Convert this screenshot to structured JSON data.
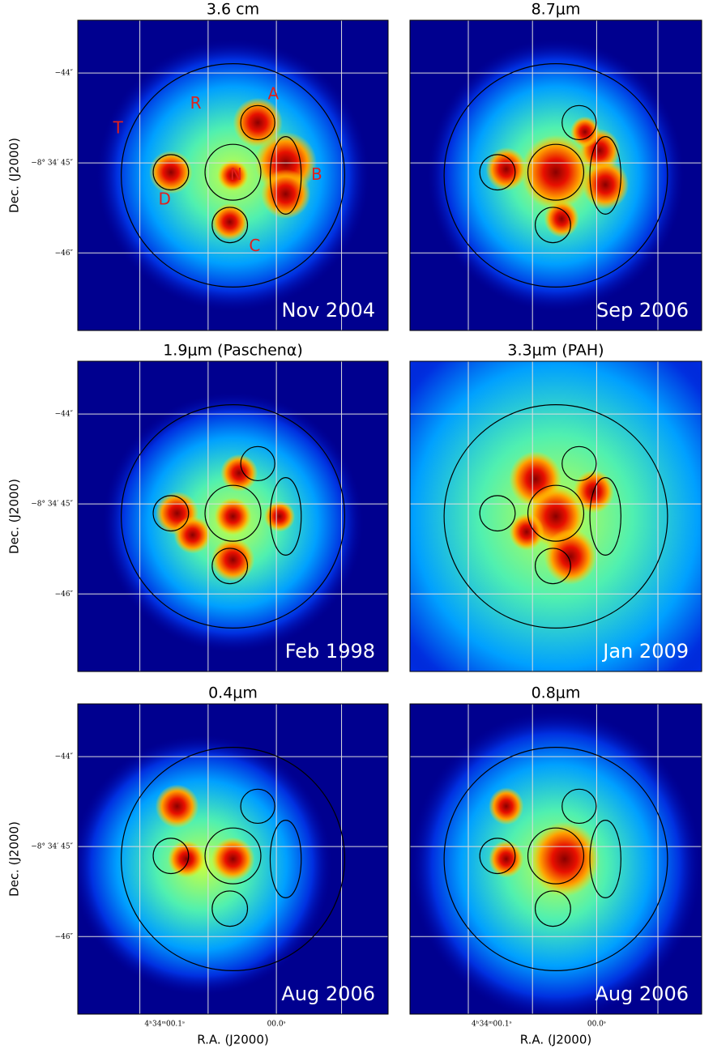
{
  "panels": [
    {
      "title": "3.6 cm",
      "epoch": "Nov 2004",
      "labels": [
        "A",
        "B",
        "C",
        "D",
        "N",
        "R",
        "T"
      ]
    },
    {
      "title": "8.7μm",
      "epoch": "Sep 2006"
    },
    {
      "title": "1.9μm (Paschenα)",
      "epoch": "Feb 1998"
    },
    {
      "title": "3.3μm (PAH)",
      "epoch": "Jan 2009"
    },
    {
      "title": "0.4μm",
      "epoch": "Aug 2006"
    },
    {
      "title": "0.8μm",
      "epoch": "Aug 2006"
    }
  ],
  "y_axis_label": "Dec. (J2000)",
  "x_axis_label": "R.A. (J2000)",
  "y_tick_labels": [
    "−44″",
    "−8° 34′ 45″",
    "−46″"
  ],
  "x_tick_labels": [
    "4ʰ34ᵐ00.1ˢ",
    "00.0ˢ"
  ]
}
